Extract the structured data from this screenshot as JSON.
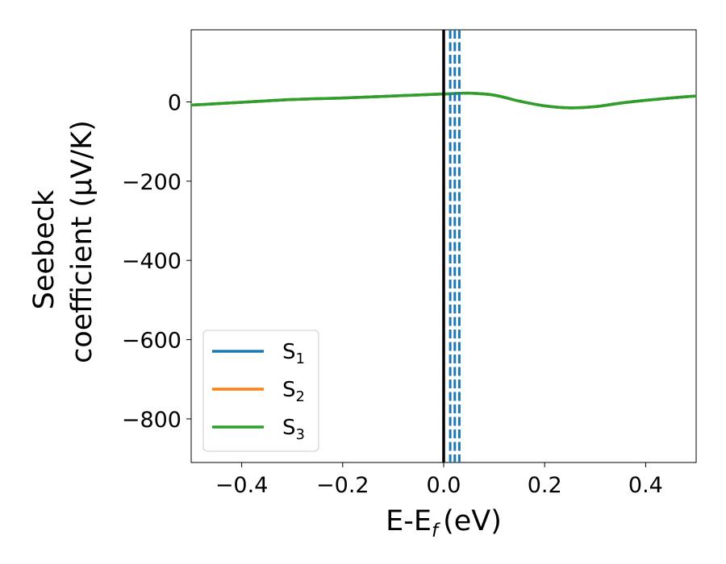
{
  "chart_data": {
    "type": "line",
    "xlabel": "E-E",
    "xlabel_sub": "f",
    "xlabel_unit": "(eV)",
    "ylabel_line1": "Seebeck",
    "ylabel_line2": "coefficient  (μV/K)",
    "xlim": [
      -0.5,
      0.5
    ],
    "ylim": [
      -910,
      182
    ],
    "xticks": [
      -0.4,
      -0.2,
      0.0,
      0.2,
      0.4
    ],
    "xtick_labels": [
      "−0.4",
      "−0.2",
      "0.0",
      "0.2",
      "0.4"
    ],
    "yticks": [
      0,
      -200,
      -400,
      -600,
      -800
    ],
    "ytick_labels": [
      "0",
      "−200",
      "−400",
      "−600",
      "−800"
    ],
    "grid": false,
    "legend_position": "lower-left",
    "series": [
      {
        "name": "S",
        "sub": "1",
        "color": "#1f77b4",
        "x": [
          -0.5,
          -0.4,
          -0.3,
          -0.2,
          -0.1,
          0.0,
          0.05,
          0.1,
          0.15,
          0.2,
          0.25,
          0.3,
          0.35,
          0.4,
          0.45,
          0.5
        ],
        "y": [
          -8,
          -1,
          6,
          10,
          15,
          20,
          22,
          17,
          2,
          -10,
          -15,
          -12,
          -3,
          4,
          10,
          15
        ]
      },
      {
        "name": "S",
        "sub": "2",
        "color": "#ff7f0e",
        "x": [
          -0.5,
          -0.4,
          -0.3,
          -0.2,
          -0.1,
          0.0,
          0.05,
          0.1,
          0.15,
          0.2,
          0.25,
          0.3,
          0.35,
          0.4,
          0.45,
          0.5
        ],
        "y": [
          -8,
          -1,
          6,
          10,
          15,
          20,
          22,
          17,
          2,
          -10,
          -15,
          -12,
          -3,
          4,
          10,
          15
        ]
      },
      {
        "name": "S",
        "sub": "3",
        "color": "#2ca02c",
        "x": [
          -0.5,
          -0.4,
          -0.3,
          -0.2,
          -0.1,
          0.0,
          0.05,
          0.1,
          0.15,
          0.2,
          0.25,
          0.3,
          0.35,
          0.4,
          0.45,
          0.5
        ],
        "y": [
          -8,
          -1,
          6,
          10,
          15,
          20,
          22,
          17,
          2,
          -10,
          -15,
          -12,
          -3,
          4,
          10,
          15
        ]
      }
    ],
    "vlines": [
      {
        "x": 0.0,
        "color": "#000000",
        "style": "solid"
      },
      {
        "x": 0.013,
        "color": "#1f77b4",
        "style": "dashed"
      },
      {
        "x": 0.022,
        "color": "#1f77b4",
        "style": "dashed"
      },
      {
        "x": 0.031,
        "color": "#1f77b4",
        "style": "dashed"
      }
    ]
  }
}
